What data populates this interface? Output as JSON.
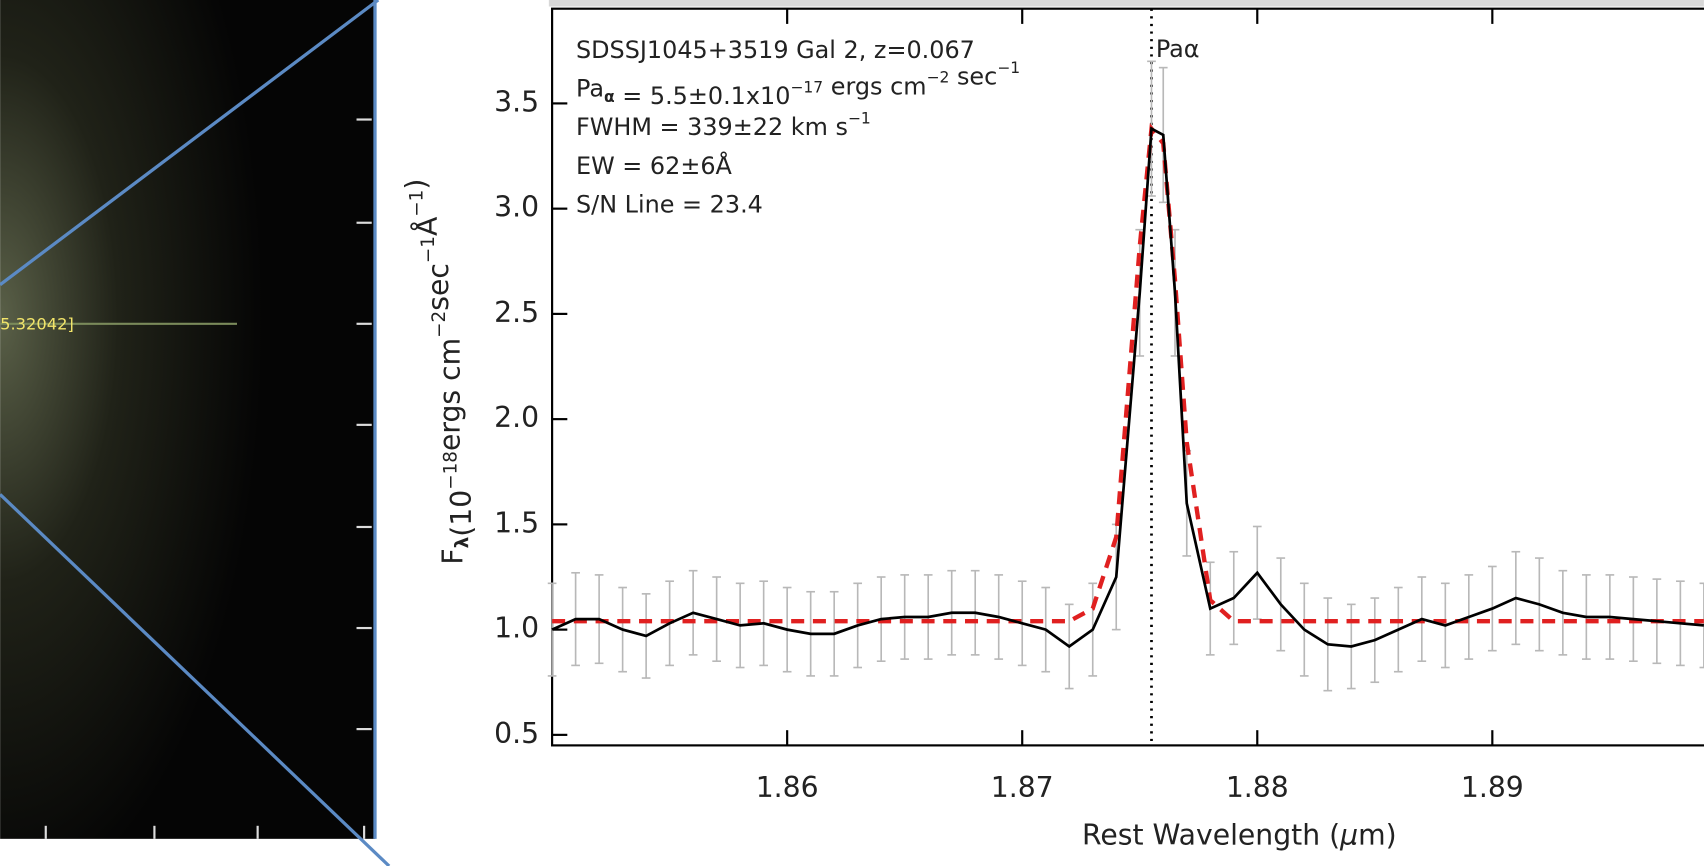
{
  "image_label": "5.32042]",
  "chart_data": {
    "type": "line",
    "xlabel": [
      "Rest Wavelength (",
      {
        "greek": "μ"
      },
      "m)"
    ],
    "ylabel": [
      "F",
      {
        "sub": "λ"
      },
      "(10",
      {
        "sup": "−18"
      },
      "ergs cm",
      {
        "sup": "−2"
      },
      "sec",
      {
        "sup": "−1"
      },
      "Å",
      {
        "sup": "−1"
      },
      ")"
    ],
    "annotations": [
      [
        "SDSSJ1045+3519 Gal 2, z=0.067"
      ],
      [
        "Pa",
        {
          "sub": "α"
        },
        " = 5.5±0.1x10",
        {
          "sup": "−17"
        },
        " ergs cm",
        {
          "sup": "−2"
        },
        " sec",
        {
          "sup": "−1"
        }
      ],
      [
        "FWHM = 339±22 km s",
        {
          "sup": "−1"
        }
      ],
      [
        "EW = 62±6Å"
      ],
      [
        "S/N Line = 23.4"
      ]
    ],
    "line_marker": {
      "x": 1.8755,
      "label": "Paα"
    },
    "x": [
      1.85,
      1.851,
      1.852,
      1.853,
      1.854,
      1.855,
      1.856,
      1.857,
      1.858,
      1.859,
      1.86,
      1.861,
      1.862,
      1.863,
      1.864,
      1.865,
      1.866,
      1.867,
      1.868,
      1.869,
      1.87,
      1.871,
      1.872,
      1.873,
      1.874,
      1.875,
      1.8755,
      1.876,
      1.8765,
      1.877,
      1.878,
      1.879,
      1.88,
      1.881,
      1.882,
      1.883,
      1.884,
      1.885,
      1.886,
      1.887,
      1.888,
      1.889,
      1.89,
      1.891,
      1.892,
      1.893,
      1.894,
      1.895,
      1.896,
      1.897,
      1.898,
      1.899
    ],
    "series": [
      {
        "color": "#000000",
        "errors_color": "#b8b8b8",
        "values": [
          1.0,
          1.05,
          1.05,
          1.0,
          0.97,
          1.03,
          1.08,
          1.05,
          1.02,
          1.03,
          1.0,
          0.98,
          0.98,
          1.02,
          1.05,
          1.06,
          1.06,
          1.08,
          1.08,
          1.06,
          1.03,
          1.0,
          0.92,
          1.0,
          1.25,
          2.6,
          3.38,
          3.35,
          2.6,
          1.6,
          1.1,
          1.15,
          1.27,
          1.12,
          1.0,
          0.93,
          0.92,
          0.95,
          1.0,
          1.05,
          1.02,
          1.06,
          1.1,
          1.15,
          1.12,
          1.08,
          1.06,
          1.06,
          1.05,
          1.04,
          1.03,
          1.02
        ],
        "errors": [
          0.22,
          0.22,
          0.21,
          0.2,
          0.2,
          0.2,
          0.2,
          0.2,
          0.2,
          0.2,
          0.2,
          0.2,
          0.2,
          0.2,
          0.2,
          0.2,
          0.2,
          0.2,
          0.2,
          0.2,
          0.2,
          0.2,
          0.2,
          0.22,
          0.25,
          0.3,
          0.32,
          0.32,
          0.3,
          0.25,
          0.22,
          0.22,
          0.22,
          0.22,
          0.22,
          0.22,
          0.2,
          0.2,
          0.2,
          0.2,
          0.2,
          0.2,
          0.2,
          0.22,
          0.22,
          0.2,
          0.2,
          0.2,
          0.2,
          0.2,
          0.2,
          0.2
        ]
      },
      {
        "color": "#e02020",
        "dashed": true,
        "values": [
          1.04,
          1.04,
          1.04,
          1.04,
          1.04,
          1.04,
          1.04,
          1.04,
          1.04,
          1.04,
          1.04,
          1.04,
          1.04,
          1.04,
          1.04,
          1.04,
          1.04,
          1.04,
          1.04,
          1.04,
          1.04,
          1.04,
          1.04,
          1.1,
          1.44,
          2.82,
          3.38,
          3.31,
          2.66,
          1.89,
          1.14,
          1.04,
          1.04,
          1.04,
          1.04,
          1.04,
          1.04,
          1.04,
          1.04,
          1.04,
          1.04,
          1.04,
          1.04,
          1.04,
          1.04,
          1.04,
          1.04,
          1.04,
          1.04,
          1.04,
          1.04,
          1.04
        ]
      }
    ],
    "xlim": [
      1.85,
      1.899
    ],
    "xticks": [
      1.86,
      1.87,
      1.88,
      1.89
    ],
    "ylim": [
      0.45,
      3.95
    ],
    "yticks": [
      {
        "value": 0.5,
        "label": "0.5"
      },
      {
        "value": 1,
        "label": "1.0"
      },
      {
        "value": 1.5,
        "label": "1.5"
      },
      {
        "value": 2,
        "label": "2.0"
      },
      {
        "value": 2.5,
        "label": "2.5"
      },
      {
        "value": 3,
        "label": "3.0"
      },
      {
        "value": 3.5,
        "label": "3.5"
      }
    ]
  }
}
